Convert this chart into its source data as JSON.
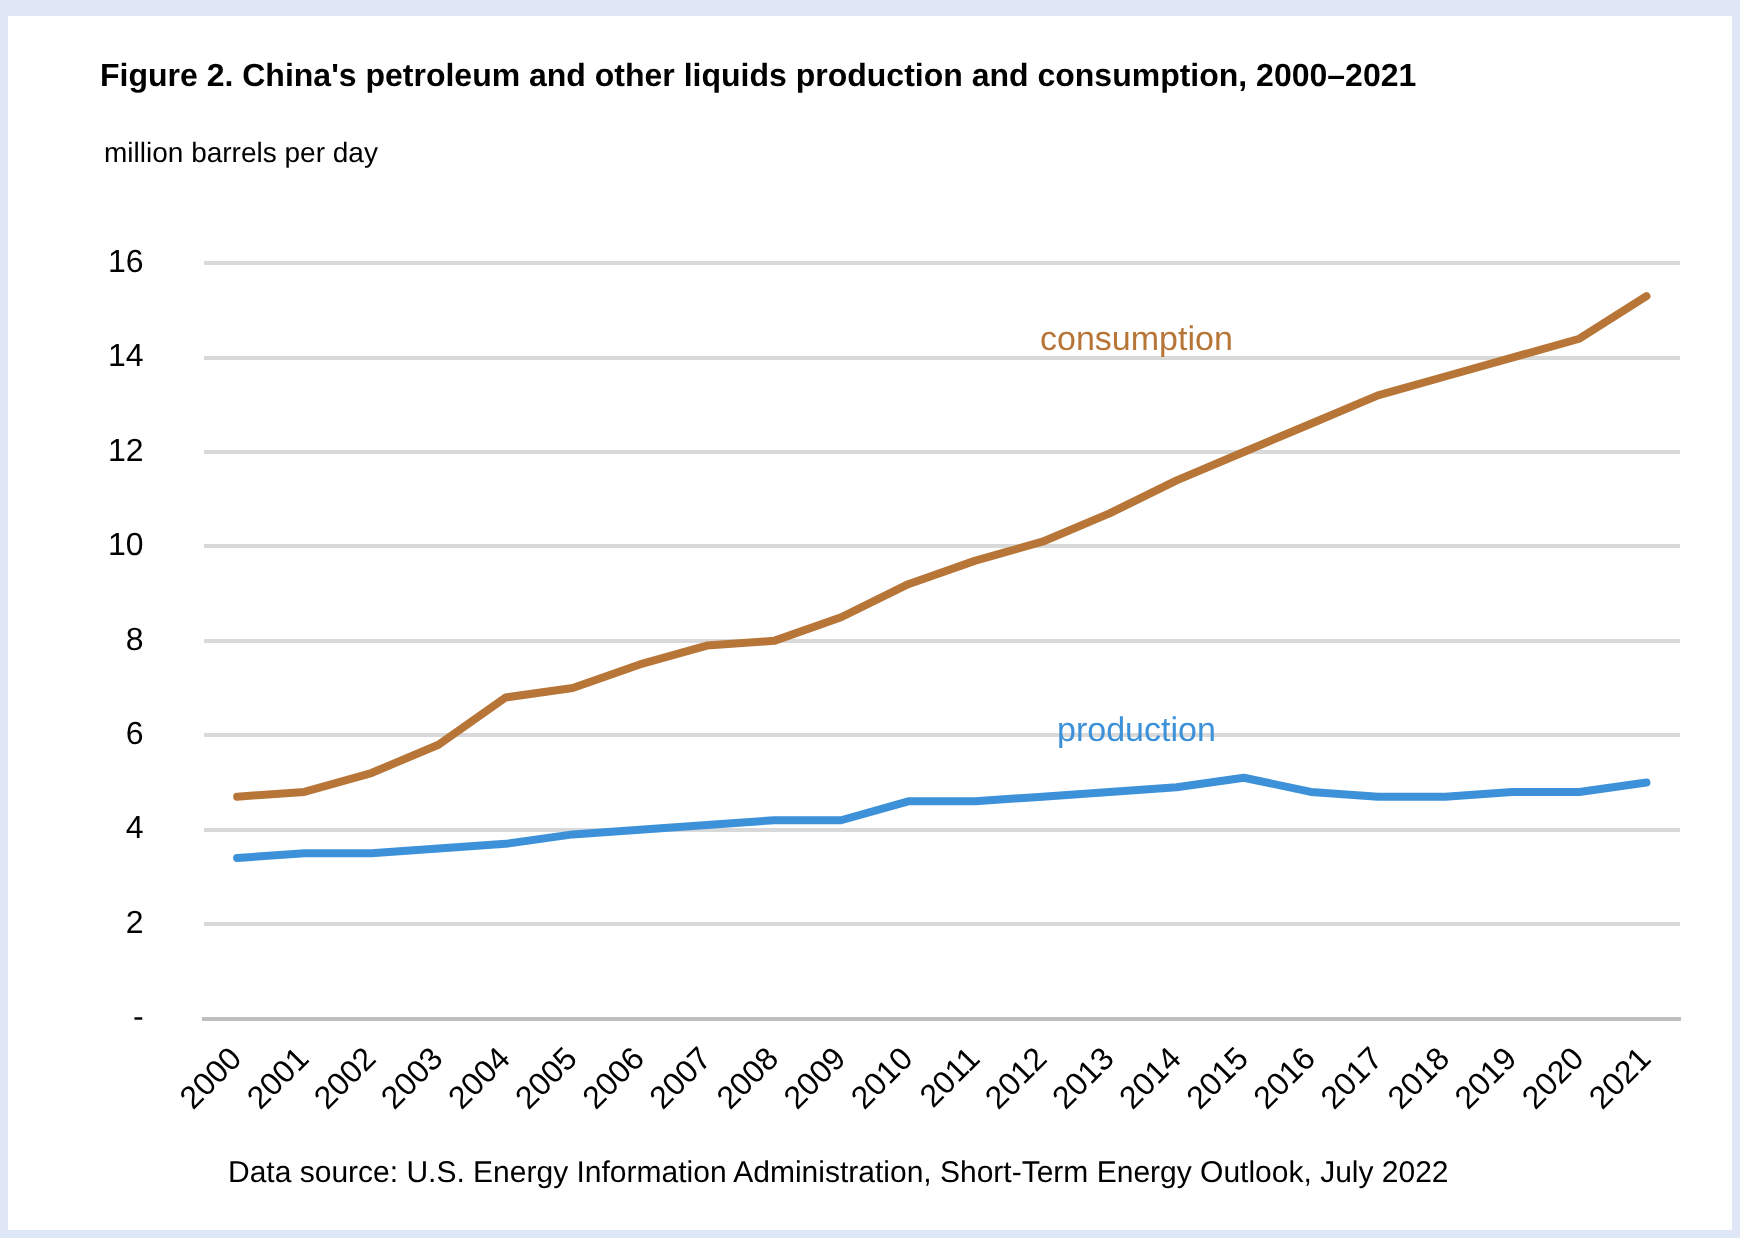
{
  "chart_data": {
    "type": "line",
    "title": "Figure 2. China's petroleum and other liquids production and consumption, 2000–2021",
    "ylabel": "million barrels per day",
    "annotations": [
      "Data source: U.S. Energy Information Administration, Short-Term Energy Outlook, July 2022"
    ],
    "categories": [
      "2000",
      "2001",
      "2002",
      "2003",
      "2004",
      "2005",
      "2006",
      "2007",
      "2008",
      "2009",
      "2010",
      "2011",
      "2012",
      "2013",
      "2014",
      "2015",
      "2016",
      "2017",
      "2018",
      "2019",
      "2020",
      "2021"
    ],
    "series": [
      {
        "name": "consumption",
        "color": "#b77638",
        "values": [
          4.7,
          4.8,
          5.2,
          5.8,
          6.8,
          7.0,
          7.5,
          7.9,
          8.0,
          8.5,
          9.2,
          9.7,
          10.1,
          10.7,
          11.4,
          12.0,
          12.6,
          13.2,
          13.6,
          14.0,
          14.4,
          15.3
        ]
      },
      {
        "name": "production",
        "color": "#3c91d8",
        "values": [
          3.4,
          3.5,
          3.5,
          3.6,
          3.7,
          3.9,
          4.0,
          4.1,
          4.2,
          4.2,
          4.6,
          4.6,
          4.7,
          4.8,
          4.9,
          5.1,
          4.8,
          4.7,
          4.7,
          4.8,
          4.8,
          5.0
        ]
      }
    ],
    "ylim": [
      0,
      16
    ],
    "yticks": [
      {
        "value": 0,
        "label": "-"
      },
      2,
      4,
      6,
      8,
      10,
      12,
      14,
      16
    ],
    "grid": "y",
    "legend": false,
    "marker": "none",
    "line_style": "solid"
  }
}
